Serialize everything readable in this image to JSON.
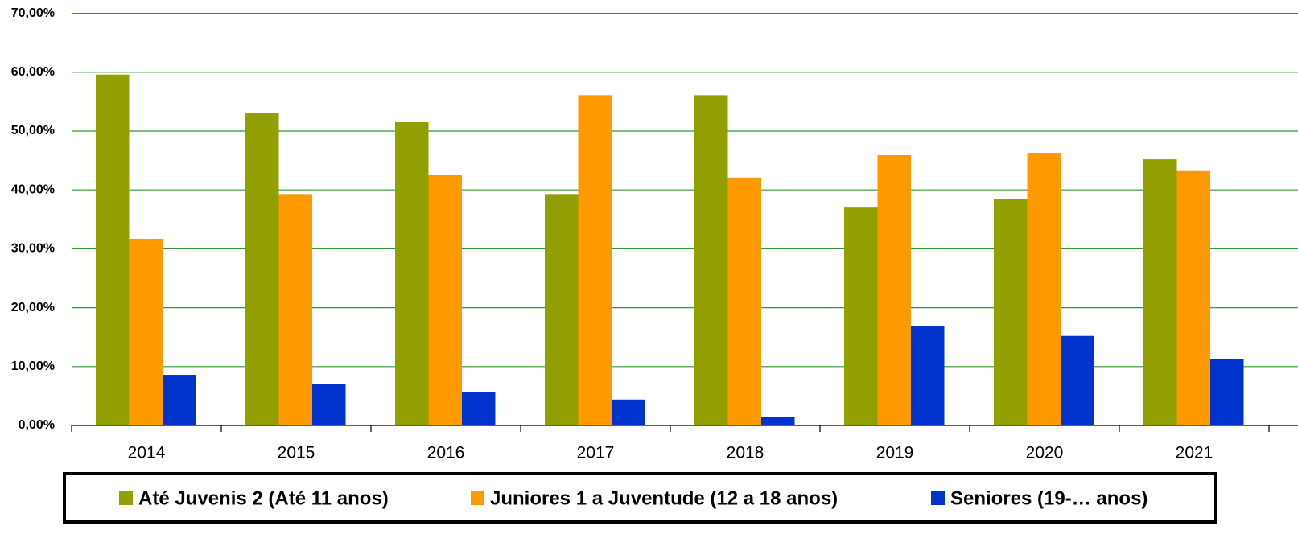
{
  "chart_data": {
    "type": "bar",
    "categories": [
      "2014",
      "2015",
      "2016",
      "2017",
      "2018",
      "2019",
      "2020",
      "2021"
    ],
    "series": [
      {
        "name": "Até Juvenis 2 (Até 11 anos)",
        "color": "#91a000",
        "values": [
          59.6,
          53.1,
          51.5,
          39.3,
          56.1,
          37.0,
          38.4,
          45.2
        ]
      },
      {
        "name": "Juniores 1 a Juventude (12 a 18 anos)",
        "color": "#ff9900",
        "values": [
          31.7,
          39.3,
          42.5,
          56.1,
          42.1,
          45.9,
          46.3,
          43.2
        ]
      },
      {
        "name": "Seniores (19-… anos)",
        "color": "#0033cc",
        "values": [
          8.6,
          7.1,
          5.7,
          4.4,
          1.5,
          16.8,
          15.2,
          11.3
        ]
      }
    ],
    "ylim": [
      0,
      70
    ],
    "yticks": [
      {
        "value": 0,
        "label": "0,00%"
      },
      {
        "value": 10,
        "label": "10,00%"
      },
      {
        "value": 20,
        "label": "20,00%"
      },
      {
        "value": 30,
        "label": "30,00%"
      },
      {
        "value": 40,
        "label": "40,00%"
      },
      {
        "value": 50,
        "label": "50,00%"
      },
      {
        "value": 60,
        "label": "60,00%"
      },
      {
        "value": 70,
        "label": "70,00%"
      }
    ],
    "grid": true,
    "legend": "bottom"
  }
}
